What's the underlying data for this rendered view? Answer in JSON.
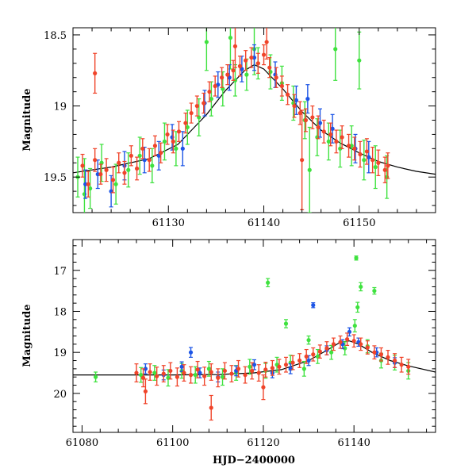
{
  "chart_data": [
    {
      "type": "scatter",
      "panel": "top",
      "title": "",
      "xlabel": "",
      "ylabel": "Magnitude",
      "xlim": [
        61120,
        61158
      ],
      "ylim": [
        19.75,
        18.45
      ],
      "y_inverted": true,
      "xticks": [
        61130,
        61140,
        61150
      ],
      "xtick_labels": [
        "61130",
        "61140",
        "61150"
      ],
      "yticks": [
        18.5,
        19,
        19.5
      ],
      "ytick_labels": [
        "18.5",
        "19",
        "19.5"
      ],
      "grid": false,
      "colors": {
        "red": "#f0442a",
        "green": "#3fe23f",
        "blue": "#1c55e6",
        "model": "#000000"
      },
      "model_curve": {
        "x": [
          61120,
          61124,
          61128,
          61131,
          61134,
          61136,
          61138,
          61139,
          61140,
          61142,
          61144,
          61146,
          61148,
          61150,
          61152,
          61154,
          61156,
          61158
        ],
        "y": [
          19.47,
          19.43,
          19.37,
          19.27,
          19.06,
          18.89,
          18.75,
          18.71,
          18.74,
          18.88,
          19.04,
          19.17,
          19.26,
          19.33,
          19.39,
          19.43,
          19.46,
          19.48
        ]
      },
      "series": [
        {
          "name": "red",
          "x": [
            61121,
            61121.6,
            61122.3,
            61122.9,
            61123.5,
            61124.2,
            61124.8,
            61125.4,
            61126.1,
            61126.7,
            61127.3,
            61128.0,
            61128.6,
            61129.2,
            61129.9,
            61130.5,
            61131.1,
            61131.8,
            61132.4,
            61133.0,
            61133.7,
            61134.3,
            61134.9,
            61135.6,
            61136.2,
            61136.8,
            61137.5,
            61138.1,
            61138.7,
            61139.4,
            61140.0,
            61140.6,
            61141.3,
            61141.9,
            61142.5,
            61143.2,
            61143.8,
            61144.4,
            61145.1,
            61145.7,
            61146.3,
            61147.0,
            61147.6,
            61148.2,
            61148.9,
            61149.5,
            61150.1,
            61150.8,
            61151.4,
            61152.0,
            61152.7,
            61153.0,
            61122.3,
            61137.0,
            61140.3,
            61144.0
          ],
          "y": [
            19.42,
            19.55,
            19.38,
            19.48,
            19.45,
            19.52,
            19.4,
            19.47,
            19.35,
            19.44,
            19.3,
            19.38,
            19.28,
            19.33,
            19.2,
            19.25,
            19.18,
            19.12,
            19.05,
            19.0,
            18.98,
            18.9,
            18.86,
            18.8,
            18.78,
            18.75,
            18.72,
            18.68,
            18.66,
            18.7,
            18.64,
            18.73,
            18.8,
            18.86,
            18.92,
            19.0,
            19.05,
            19.1,
            19.08,
            19.15,
            19.18,
            19.2,
            19.25,
            19.22,
            19.28,
            19.3,
            19.34,
            19.32,
            19.38,
            19.4,
            19.45,
            19.42,
            18.77,
            18.58,
            18.55,
            19.38
          ],
          "err": [
            0.08,
            0.09,
            0.08,
            0.07,
            0.08,
            0.09,
            0.07,
            0.08,
            0.07,
            0.08,
            0.07,
            0.08,
            0.07,
            0.07,
            0.07,
            0.08,
            0.07,
            0.07,
            0.07,
            0.07,
            0.07,
            0.07,
            0.07,
            0.07,
            0.07,
            0.07,
            0.07,
            0.07,
            0.07,
            0.07,
            0.07,
            0.07,
            0.07,
            0.07,
            0.07,
            0.08,
            0.08,
            0.08,
            0.08,
            0.08,
            0.08,
            0.08,
            0.08,
            0.08,
            0.08,
            0.08,
            0.09,
            0.09,
            0.09,
            0.09,
            0.09,
            0.09,
            0.14,
            0.15,
            0.12,
            0.35
          ]
        },
        {
          "name": "green",
          "x": [
            61120.5,
            61121.8,
            61123.0,
            61124.5,
            61125.8,
            61127.0,
            61128.3,
            61129.6,
            61130.8,
            61132.0,
            61133.2,
            61134.5,
            61135.7,
            61137.0,
            61138.2,
            61139.4,
            61140.7,
            61141.9,
            61143.1,
            61144.3,
            61145.6,
            61146.8,
            61148.0,
            61149.2,
            61150.5,
            61151.7,
            61152.9,
            61121.2,
            61134.0,
            61136.5,
            61139.0,
            61144.8,
            61147.5,
            61150.0
          ],
          "y": [
            19.5,
            19.58,
            19.4,
            19.55,
            19.45,
            19.35,
            19.42,
            19.25,
            19.3,
            19.15,
            19.08,
            18.95,
            18.88,
            18.82,
            18.78,
            18.7,
            18.76,
            18.84,
            18.98,
            19.1,
            19.22,
            19.25,
            19.3,
            19.28,
            19.38,
            19.43,
            19.5,
            19.62,
            18.55,
            18.52,
            18.6,
            19.45,
            18.6,
            18.68
          ],
          "err": [
            0.14,
            0.14,
            0.13,
            0.14,
            0.12,
            0.13,
            0.12,
            0.13,
            0.12,
            0.12,
            0.13,
            0.12,
            0.12,
            0.11,
            0.11,
            0.11,
            0.12,
            0.12,
            0.12,
            0.13,
            0.13,
            0.13,
            0.13,
            0.14,
            0.14,
            0.15,
            0.15,
            0.25,
            0.2,
            0.22,
            0.18,
            0.3,
            0.22,
            0.2
          ]
        },
        {
          "name": "blue",
          "x": [
            61121.3,
            61122.6,
            61124.0,
            61125.4,
            61127.5,
            61129.0,
            61130.4,
            61131.5,
            61133.8,
            61135.2,
            61136.4,
            61137.7,
            61139.0,
            61141.2,
            61143.4,
            61144.6,
            61145.9,
            61147.2,
            61149.6,
            61151.0
          ],
          "y": [
            19.55,
            19.48,
            19.6,
            19.42,
            19.38,
            19.35,
            19.22,
            19.3,
            18.98,
            18.85,
            18.8,
            18.74,
            18.66,
            18.78,
            18.96,
            18.95,
            19.12,
            19.16,
            19.3,
            19.36
          ],
          "err": [
            0.1,
            0.1,
            0.11,
            0.1,
            0.09,
            0.1,
            0.09,
            0.12,
            0.09,
            0.09,
            0.09,
            0.09,
            0.09,
            0.09,
            0.1,
            0.1,
            0.1,
            0.1,
            0.1,
            0.11
          ]
        }
      ]
    },
    {
      "type": "scatter",
      "panel": "bottom",
      "title": "",
      "xlabel": "HJD−2400000",
      "ylabel": "Magnitude",
      "xlim": [
        61078,
        61158
      ],
      "ylim": [
        20.95,
        16.25
      ],
      "y_inverted": true,
      "xticks": [
        61080,
        61100,
        61120,
        61140
      ],
      "xtick_labels": [
        "61080",
        "61100",
        "61120",
        "61140"
      ],
      "yticks": [
        17,
        18,
        19,
        20
      ],
      "ytick_labels": [
        "17",
        "18",
        "19",
        "20"
      ],
      "grid": false,
      "colors": {
        "red": "#f0442a",
        "green": "#3fe23f",
        "blue": "#1c55e6",
        "model": "#000000"
      },
      "model_curve": {
        "x": [
          61078,
          61090,
          61100,
          61110,
          61118,
          61124,
          61130,
          61134,
          61137,
          61139,
          61141,
          61144,
          61148,
          61152,
          61158
        ],
        "y": [
          19.55,
          19.55,
          19.55,
          19.54,
          19.5,
          19.42,
          19.2,
          18.95,
          18.75,
          18.72,
          18.8,
          19.0,
          19.2,
          19.33,
          19.48
        ]
      },
      "series": [
        {
          "name": "red",
          "x": [
            61092.0,
            61093.5,
            61095.0,
            61096.5,
            61098.0,
            61099.5,
            61101.0,
            61102.5,
            61104.0,
            61105.5,
            61107.0,
            61108.5,
            61110.0,
            61111.5,
            61113.0,
            61114.5,
            61116.0,
            61117.5,
            61119.0,
            61120.5,
            61122.0,
            61123.5,
            61125.0,
            61126.5,
            61128.0,
            61129.5,
            61131.0,
            61132.5,
            61134.0,
            61135.5,
            61137.0,
            61138.5,
            61140.0,
            61141.5,
            61143.0,
            61144.5,
            61146.0,
            61147.5,
            61149.0,
            61150.5,
            61152.0,
            61094.0,
            61108.5,
            61120.0
          ],
          "y": [
            19.5,
            19.62,
            19.48,
            19.58,
            19.52,
            19.45,
            19.6,
            19.5,
            19.55,
            19.42,
            19.58,
            19.48,
            19.62,
            19.45,
            19.52,
            19.4,
            19.55,
            19.45,
            19.5,
            19.42,
            19.38,
            19.35,
            19.3,
            19.25,
            19.2,
            19.1,
            19.05,
            18.98,
            18.9,
            18.8,
            18.75,
            18.68,
            18.72,
            18.8,
            18.88,
            19.0,
            19.05,
            19.12,
            19.2,
            19.3,
            19.35,
            19.95,
            20.35,
            19.85
          ],
          "err": [
            0.22,
            0.22,
            0.2,
            0.22,
            0.2,
            0.2,
            0.22,
            0.2,
            0.2,
            0.2,
            0.22,
            0.2,
            0.22,
            0.2,
            0.2,
            0.2,
            0.2,
            0.2,
            0.2,
            0.18,
            0.18,
            0.18,
            0.18,
            0.17,
            0.17,
            0.17,
            0.16,
            0.16,
            0.16,
            0.15,
            0.15,
            0.15,
            0.15,
            0.15,
            0.16,
            0.16,
            0.16,
            0.17,
            0.17,
            0.18,
            0.18,
            0.3,
            0.3,
            0.3
          ]
        },
        {
          "name": "green",
          "x": [
            61083.0,
            61093.0,
            61096.0,
            61099.0,
            61102.0,
            61105.0,
            61108.0,
            61111.0,
            61114.0,
            61117.0,
            61120.5,
            61123.0,
            61126.0,
            61129.0,
            61132.0,
            61135.0,
            61138.0,
            61140.2,
            61140.8,
            61141.5,
            61143.0,
            61146.0,
            61149.0,
            61152.0,
            61121.0,
            61144.5,
            61125.0,
            61130.0,
            61140.5
          ],
          "y": [
            19.6,
            19.55,
            19.5,
            19.62,
            19.45,
            19.55,
            19.4,
            19.6,
            19.5,
            19.35,
            19.45,
            19.3,
            19.25,
            19.4,
            19.1,
            19.0,
            18.9,
            18.35,
            17.9,
            17.4,
            18.85,
            19.2,
            19.25,
            19.45,
            17.3,
            17.5,
            18.3,
            18.7,
            16.7
          ],
          "err": [
            0.12,
            0.18,
            0.18,
            0.2,
            0.18,
            0.2,
            0.18,
            0.2,
            0.18,
            0.18,
            0.18,
            0.18,
            0.18,
            0.18,
            0.17,
            0.17,
            0.16,
            0.15,
            0.12,
            0.1,
            0.16,
            0.18,
            0.18,
            0.2,
            0.1,
            0.08,
            0.1,
            0.1,
            0.05
          ]
        },
        {
          "name": "blue",
          "x": [
            61094.0,
            61098.0,
            61102.0,
            61106.0,
            61110.0,
            61114.0,
            61118.0,
            61122.0,
            61126.0,
            61130.0,
            61131.0,
            61134.0,
            61137.5,
            61139.0,
            61141.0,
            61145.0,
            61149.0,
            61104.0
          ],
          "y": [
            19.4,
            19.55,
            19.35,
            19.5,
            19.6,
            19.45,
            19.3,
            19.5,
            19.4,
            19.2,
            17.85,
            18.95,
            18.8,
            18.5,
            18.75,
            19.0,
            19.25,
            19.0
          ],
          "err": [
            0.12,
            0.12,
            0.12,
            0.12,
            0.12,
            0.12,
            0.12,
            0.12,
            0.12,
            0.12,
            0.06,
            0.11,
            0.11,
            0.1,
            0.1,
            0.11,
            0.12,
            0.12
          ]
        }
      ]
    }
  ]
}
